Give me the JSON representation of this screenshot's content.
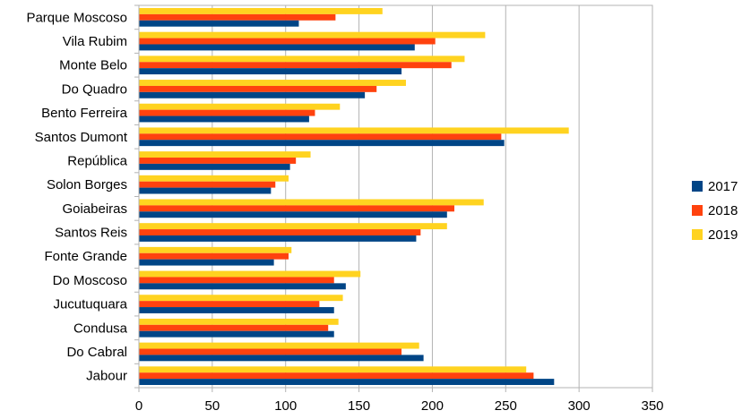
{
  "chart_data": {
    "type": "bar",
    "orientation": "horizontal",
    "categories": [
      "Jabour",
      "Do Cabral",
      "Condusa",
      "Jucutuquara",
      "Do Moscoso",
      "Fonte Grande",
      "Santos Reis",
      "Goiabeiras",
      "Solon Borges",
      "República",
      "Santos Dumont",
      "Bento Ferreira",
      "Do Quadro",
      "Monte Belo",
      "Vila Rubim",
      "Parque Moscoso"
    ],
    "series": [
      {
        "name": "2017",
        "color": "#004586",
        "values": [
          283,
          194,
          133,
          133,
          141,
          92,
          189,
          210,
          90,
          103,
          249,
          116,
          154,
          179,
          188,
          109
        ]
      },
      {
        "name": "2018",
        "color": "#ff420e",
        "values": [
          269,
          179,
          129,
          123,
          133,
          102,
          192,
          215,
          93,
          107,
          247,
          120,
          162,
          213,
          202,
          134
        ]
      },
      {
        "name": "2019",
        "color": "#ffd320",
        "values": [
          264,
          191,
          136,
          139,
          151,
          104,
          210,
          235,
          102,
          117,
          293,
          137,
          182,
          222,
          236,
          166
        ]
      }
    ],
    "xlim": [
      0,
      350
    ],
    "xticks": [
      0,
      50,
      100,
      150,
      200,
      250,
      300,
      350
    ],
    "grid": true,
    "legend": "right",
    "title": "",
    "xlabel": "",
    "ylabel": ""
  }
}
